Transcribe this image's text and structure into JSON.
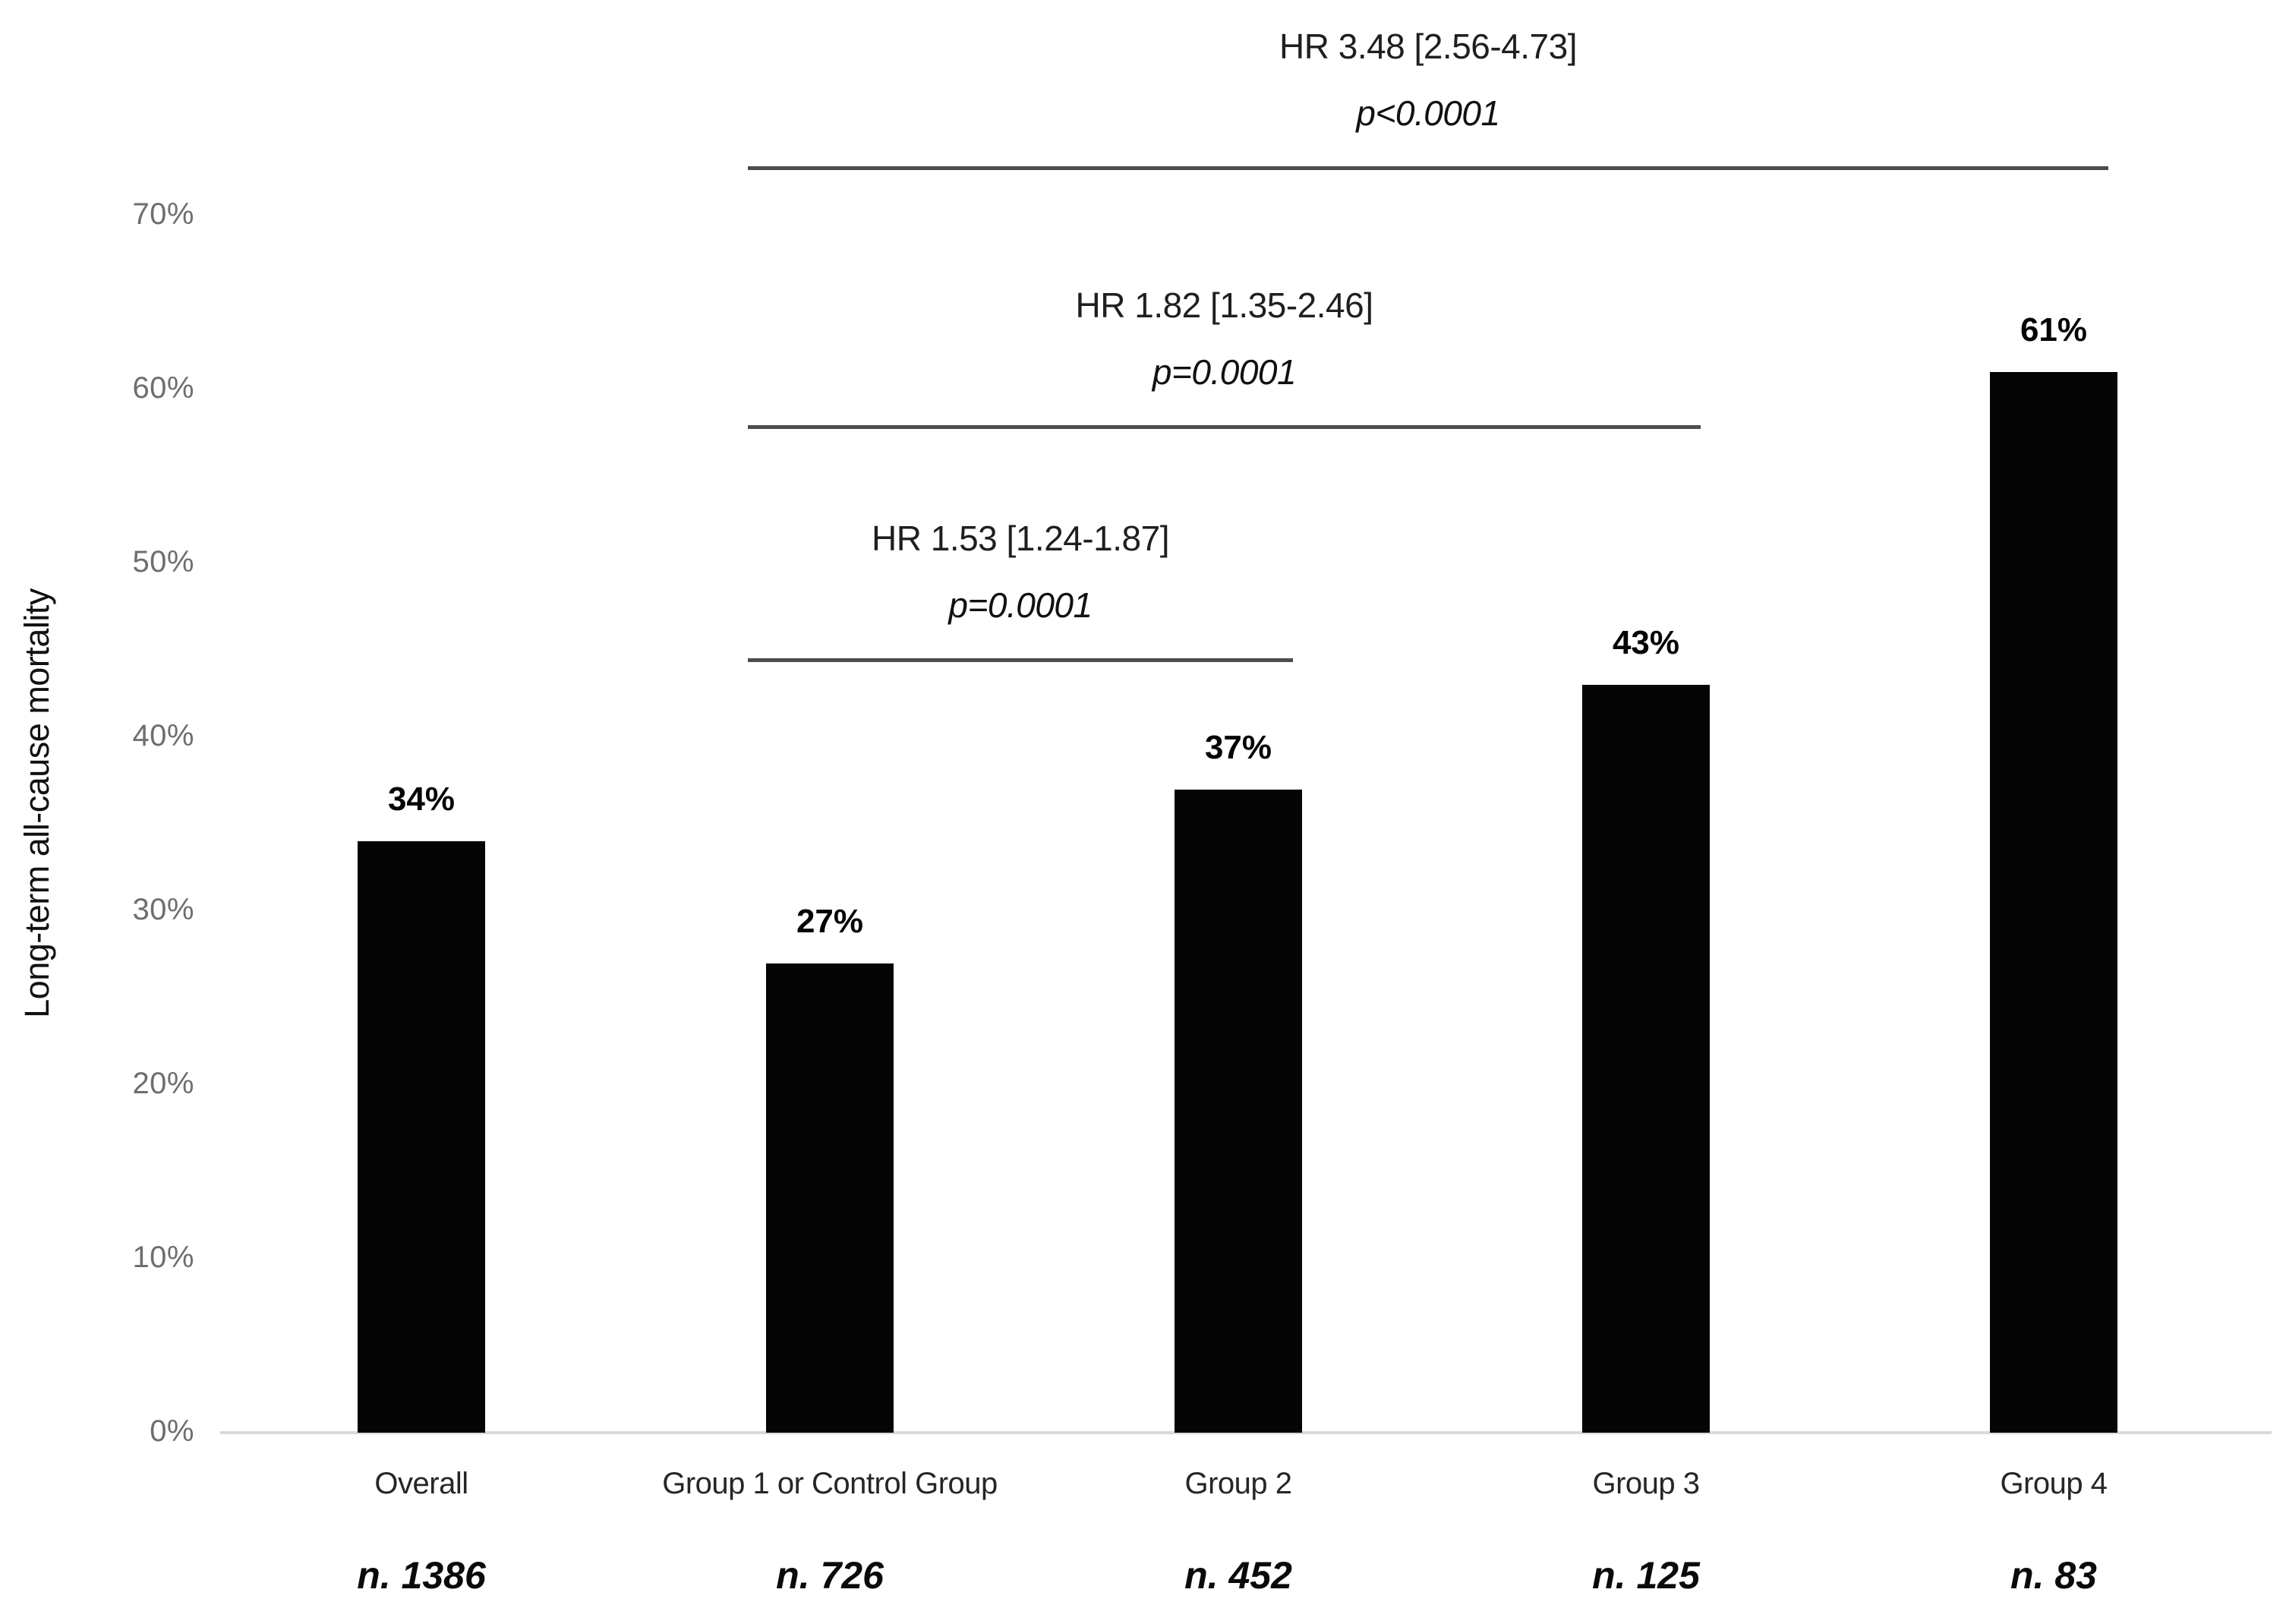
{
  "chart_data": {
    "type": "bar",
    "title": "",
    "xlabel": "",
    "ylabel": "Long-term all-cause mortality",
    "ylim": [
      0,
      70
    ],
    "ytick_labels": [
      "0%",
      "10%",
      "20%",
      "30%",
      "40%",
      "50%",
      "60%",
      "70%"
    ],
    "grid": false,
    "legend": false,
    "categories": [
      "Overall",
      "Group 1 or Control Group",
      "Group 2",
      "Group 3",
      "Group 4"
    ],
    "values": [
      34,
      27,
      37,
      43,
      61
    ],
    "value_labels": [
      "34%",
      "27%",
      "37%",
      "43%",
      "61%"
    ],
    "sample_sizes": [
      "n. 1386",
      "n. 726",
      "n. 452",
      "n. 125",
      "n. 83"
    ],
    "annotations": [
      {
        "hr": "HR 1.53 [1.24-1.87]",
        "p": "p=0.0001",
        "from": 1,
        "to": 2,
        "line_y_pct": 44.4
      },
      {
        "hr": "HR 1.82 [1.35-2.46]",
        "p": "p=0.0001",
        "from": 1,
        "to": 3,
        "line_y_pct": 57.8
      },
      {
        "hr": "HR 3.48 [2.56-4.73]",
        "p": "p<0.0001",
        "from": 1,
        "to": 4,
        "line_y_pct": 72.7
      }
    ]
  },
  "colors": {
    "bar": "#050505",
    "axis_line": "#d9d9d9",
    "tick_label": "#6e6e6e",
    "category_label": "#262626",
    "bracket_line": "#4d4d4d",
    "annotation_text": "#1f1f1f",
    "background": "#ffffff"
  }
}
